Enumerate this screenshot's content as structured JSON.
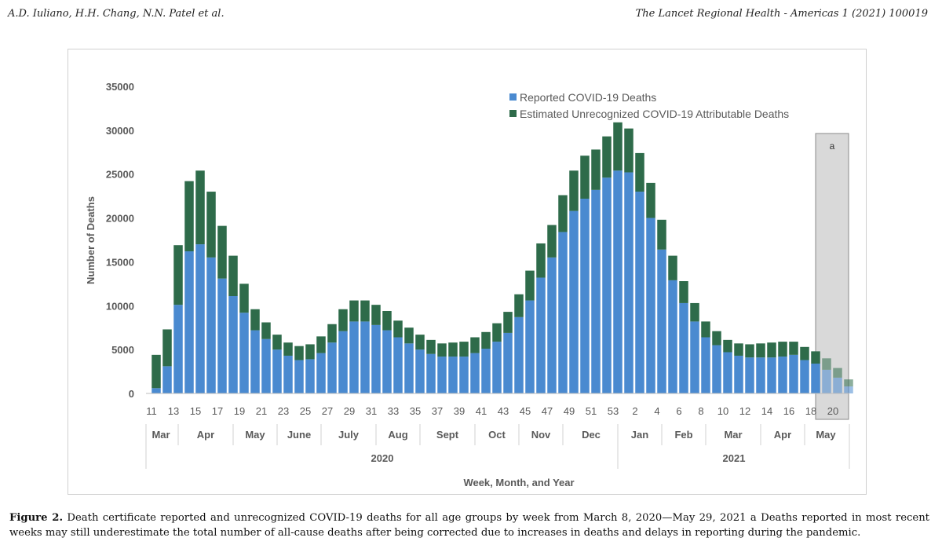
{
  "header": {
    "authors": "A.D. Iuliano, H.H. Chang, N.N. Patel et al.",
    "journal": "The Lancet Regional Health - Americas 1 (2021) 100019"
  },
  "caption": {
    "label": "Figure 2.",
    "text": "Death certificate reported and unrecognized COVID-19 deaths for all age groups by week from March 8, 2020—May 29, 2021 a Deaths reported in most recent weeks may still underestimate the total number of all-cause deaths after being corrected due to increases in deaths and delays in reporting during the pandemic."
  },
  "colors": {
    "reported": "#4a8ad0",
    "unrecognized": "#2e6b4a",
    "shade": "#d9d9d9"
  },
  "chart_data": {
    "type": "bar",
    "stacked": true,
    "ylabel": "Number of Deaths",
    "xlabel": "Week, Month, and Year",
    "ylim": [
      0,
      35000
    ],
    "yticks": [
      0,
      5000,
      10000,
      15000,
      20000,
      25000,
      30000,
      35000
    ],
    "grid": false,
    "legend_position": "top-right",
    "shaded_note": "a",
    "week_tick_labels": [
      "11",
      "13",
      "15",
      "17",
      "19",
      "21",
      "23",
      "25",
      "27",
      "29",
      "31",
      "33",
      "35",
      "37",
      "39",
      "41",
      "43",
      "45",
      "47",
      "49",
      "51",
      "53",
      "2",
      "4",
      "6",
      "8",
      "10",
      "12",
      "14",
      "16",
      "18",
      "20"
    ],
    "months": [
      "Mar",
      "Apr",
      "May",
      "June",
      "July",
      "Aug",
      "Sept",
      "Oct",
      "Nov",
      "Dec",
      "Jan",
      "Feb",
      "Mar",
      "Apr",
      "May"
    ],
    "years": [
      "2020",
      "2021"
    ],
    "series": [
      {
        "name": "Reported COVID-19 Deaths",
        "values": [
          600,
          3100,
          10100,
          16200,
          17000,
          15500,
          13100,
          11100,
          9200,
          7200,
          6200,
          5000,
          4300,
          3800,
          3900,
          4600,
          5800,
          7100,
          8200,
          8200,
          7800,
          7200,
          6400,
          5700,
          5000,
          4500,
          4200,
          4200,
          4200,
          4600,
          5100,
          5900,
          6900,
          8700,
          10600,
          13200,
          15500,
          18400,
          20800,
          22200,
          23200,
          24600,
          25400,
          25200,
          23000,
          20000,
          16400,
          12900,
          10300,
          8200,
          6400,
          5500,
          4700,
          4300,
          4100,
          4100,
          4100,
          4200,
          4400,
          3800,
          3400,
          2700,
          1800,
          800
        ]
      },
      {
        "name": "Estimated Unrecognized COVID-19 Attributable Deaths",
        "values": [
          3800,
          4200,
          6800,
          8000,
          8400,
          7500,
          6000,
          4600,
          3300,
          2400,
          1900,
          1700,
          1500,
          1600,
          1700,
          1900,
          2100,
          2500,
          2400,
          2400,
          2300,
          2200,
          1900,
          1800,
          1700,
          1600,
          1500,
          1600,
          1700,
          1800,
          1900,
          2100,
          2400,
          2600,
          3400,
          3900,
          3700,
          4200,
          4600,
          4900,
          4600,
          4700,
          5500,
          5000,
          4400,
          4000,
          3400,
          2800,
          2500,
          2100,
          1800,
          1600,
          1400,
          1400,
          1500,
          1600,
          1700,
          1700,
          1500,
          1500,
          1400,
          1300,
          1100,
          800
        ]
      }
    ]
  }
}
